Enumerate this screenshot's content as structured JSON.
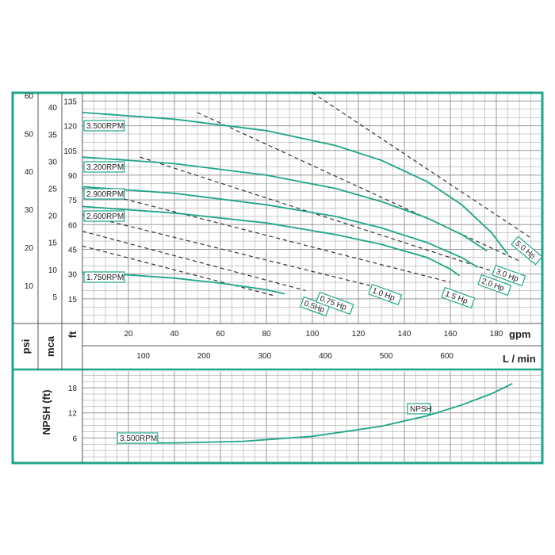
{
  "colors": {
    "frame": "#1fa58a",
    "curve": "#1fa58a",
    "grid": "#9a9a9a",
    "dash": "#333333",
    "text": "#222222"
  },
  "chart_data": [
    {
      "type": "line",
      "chart": "performance",
      "x_unit": "gpm",
      "xlim": [
        0,
        200
      ],
      "ylim": [
        0,
        140
      ],
      "y_scale_unit": "ft",
      "y_ticks_ft": [
        "15",
        "30",
        "45",
        "60",
        "75",
        "90",
        "105",
        "120",
        "135"
      ],
      "y_ticks_mca": [
        "5",
        "10",
        "15",
        "20",
        "25",
        "30",
        "35",
        "40"
      ],
      "y_ticks_psi": [
        "10",
        "20",
        "30",
        "40",
        "50",
        "60"
      ],
      "x_ticks_gpm": [
        "20",
        "40",
        "60",
        "80",
        "100",
        "120",
        "140",
        "160",
        "180"
      ],
      "x_ticks_lmin": [
        "100",
        "200",
        "300",
        "400",
        "500",
        "600"
      ],
      "unit_labels": {
        "psi": "psi",
        "mca": "mca",
        "ft": "ft",
        "gpm": "gpm",
        "lmin": "L / min"
      },
      "series": [
        {
          "name": "3.500RPM",
          "x": [
            0,
            40,
            80,
            110,
            130,
            150,
            165,
            178,
            185
          ],
          "y": [
            128,
            124,
            117,
            108,
            99,
            86,
            72,
            55,
            42
          ]
        },
        {
          "name": "3.200RPM",
          "x": [
            0,
            40,
            80,
            110,
            130,
            150,
            165,
            176
          ],
          "y": [
            101,
            97,
            90,
            82,
            74,
            64,
            54,
            44
          ]
        },
        {
          "name": "2.900RPM",
          "x": [
            0,
            40,
            80,
            110,
            130,
            150,
            165,
            172
          ],
          "y": [
            83,
            79,
            72,
            65,
            58,
            49,
            40,
            34
          ]
        },
        {
          "name": "2.600RPM",
          "x": [
            0,
            40,
            80,
            110,
            130,
            150,
            160,
            164
          ],
          "y": [
            71,
            67,
            61,
            54,
            48,
            40,
            33,
            29
          ]
        },
        {
          "name": "1.750RPM",
          "x": [
            0,
            20,
            40,
            60,
            80,
            88
          ],
          "y": [
            31,
            29.5,
            27.5,
            24.5,
            20.5,
            18
          ]
        }
      ],
      "power_lines": [
        {
          "label": "0.5Hp",
          "x": [
            0,
            83
          ],
          "y": [
            47,
            17
          ]
        },
        {
          "label": "0.75 Hp",
          "x": [
            0,
            97
          ],
          "y": [
            56,
            20
          ]
        },
        {
          "label": "1.0 Hp",
          "x": [
            0,
            125
          ],
          "y": [
            66,
            23
          ]
        },
        {
          "label": "1.5 Hp",
          "x": [
            0,
            160
          ],
          "y": [
            82,
            25
          ]
        },
        {
          "label": "2.0 Hp",
          "x": [
            25,
            180
          ],
          "y": [
            101,
            31
          ]
        },
        {
          "label": "3.0 Hp",
          "x": [
            50,
            190
          ],
          "y": [
            128,
            38
          ]
        },
        {
          "label": "5.0 Hp",
          "x": [
            100,
            195
          ],
          "y": [
            140,
            52
          ]
        }
      ]
    },
    {
      "type": "line",
      "chart": "npsh",
      "ylabel": "NPSH (ft)",
      "xlim": [
        0,
        200
      ],
      "ylim": [
        0,
        22
      ],
      "y_ticks": [
        "6",
        "12",
        "18"
      ],
      "series": [
        {
          "name": "3.500RPM",
          "x": [
            15,
            40,
            70,
            100,
            130,
            150,
            165,
            178,
            187
          ],
          "y": [
            4.8,
            4.8,
            5.2,
            6.4,
            8.8,
            11.3,
            13.9,
            16.6,
            19
          ]
        }
      ],
      "labels": [
        "3.500RPM",
        "NPSH"
      ]
    }
  ]
}
